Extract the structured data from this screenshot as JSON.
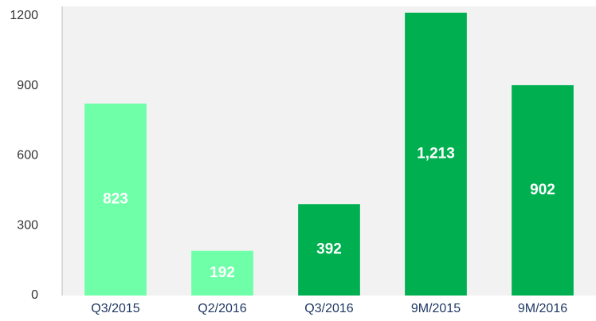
{
  "chart_data": {
    "type": "bar",
    "categories": [
      "Q3/2015",
      "Q2/2016",
      "Q3/2016",
      "9M/2015",
      "9M/2016"
    ],
    "values": [
      823,
      192,
      392,
      1213,
      902
    ],
    "value_labels": [
      "823",
      "192",
      "392",
      "1,213",
      "902"
    ],
    "colors": [
      "#6effa8",
      "#6effa8",
      "#00b050",
      "#00b050",
      "#00b050"
    ],
    "ylim": [
      0,
      1240
    ],
    "yticks": [
      0,
      300,
      600,
      900,
      1200
    ],
    "grid": false
  }
}
